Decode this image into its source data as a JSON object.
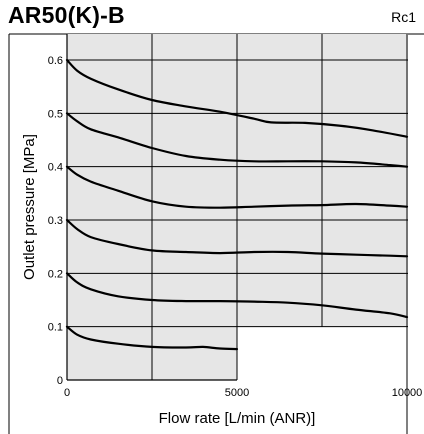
{
  "chart_data": {
    "type": "line",
    "title": "AR50(K)-B",
    "subtitle": "Rc1",
    "xlabel": "Flow rate [L/min (ANR)]",
    "ylabel": "Outlet pressure [MPa]",
    "xlim": [
      0,
      10000
    ],
    "ylim": [
      0,
      0.65
    ],
    "xticks": [
      0,
      5000,
      10000
    ],
    "yticks": [
      0,
      0.1,
      0.2,
      0.3,
      0.4,
      0.5,
      0.6
    ],
    "xtick_labels": [
      "0",
      "5000",
      "10000"
    ],
    "ytick_labels": [
      "0",
      "0.1",
      "0.2",
      "0.3",
      "0.4",
      "0.5",
      "0.6"
    ],
    "grid": true,
    "series": [
      {
        "x": [
          0,
          300,
          700,
          1500,
          2500,
          3500,
          4500,
          5500,
          6000,
          7000,
          8000,
          9000,
          10000
        ],
        "values": [
          0.6,
          0.58,
          0.565,
          0.545,
          0.525,
          0.513,
          0.503,
          0.49,
          0.483,
          0.482,
          0.477,
          0.468,
          0.456
        ]
      },
      {
        "x": [
          0,
          300,
          700,
          1500,
          2500,
          3500,
          4500,
          5500,
          6500,
          7500,
          8500,
          9500,
          10000
        ],
        "values": [
          0.5,
          0.485,
          0.47,
          0.455,
          0.435,
          0.42,
          0.413,
          0.41,
          0.41,
          0.41,
          0.408,
          0.403,
          0.4
        ]
      },
      {
        "x": [
          0,
          300,
          700,
          1500,
          2500,
          3500,
          4500,
          5500,
          6500,
          7500,
          8500,
          9500,
          10000
        ],
        "values": [
          0.4,
          0.385,
          0.372,
          0.355,
          0.335,
          0.325,
          0.323,
          0.325,
          0.327,
          0.328,
          0.33,
          0.327,
          0.325
        ]
      },
      {
        "x": [
          0,
          300,
          700,
          1500,
          2500,
          3500,
          4500,
          5500,
          6500,
          7500,
          8500,
          9500,
          10000
        ],
        "values": [
          0.3,
          0.283,
          0.268,
          0.255,
          0.243,
          0.24,
          0.238,
          0.24,
          0.24,
          0.237,
          0.235,
          0.233,
          0.232
        ]
      },
      {
        "x": [
          0,
          300,
          700,
          1500,
          2500,
          3500,
          4500,
          5500,
          6500,
          7500,
          8500,
          9500,
          10000
        ],
        "values": [
          0.2,
          0.183,
          0.17,
          0.157,
          0.15,
          0.148,
          0.148,
          0.147,
          0.145,
          0.14,
          0.132,
          0.125,
          0.118
        ]
      },
      {
        "x": [
          0,
          300,
          700,
          1500,
          2500,
          3500,
          4000,
          4500,
          5000
        ],
        "values": [
          0.1,
          0.085,
          0.076,
          0.068,
          0.062,
          0.061,
          0.062,
          0.059,
          0.058
        ]
      }
    ]
  }
}
